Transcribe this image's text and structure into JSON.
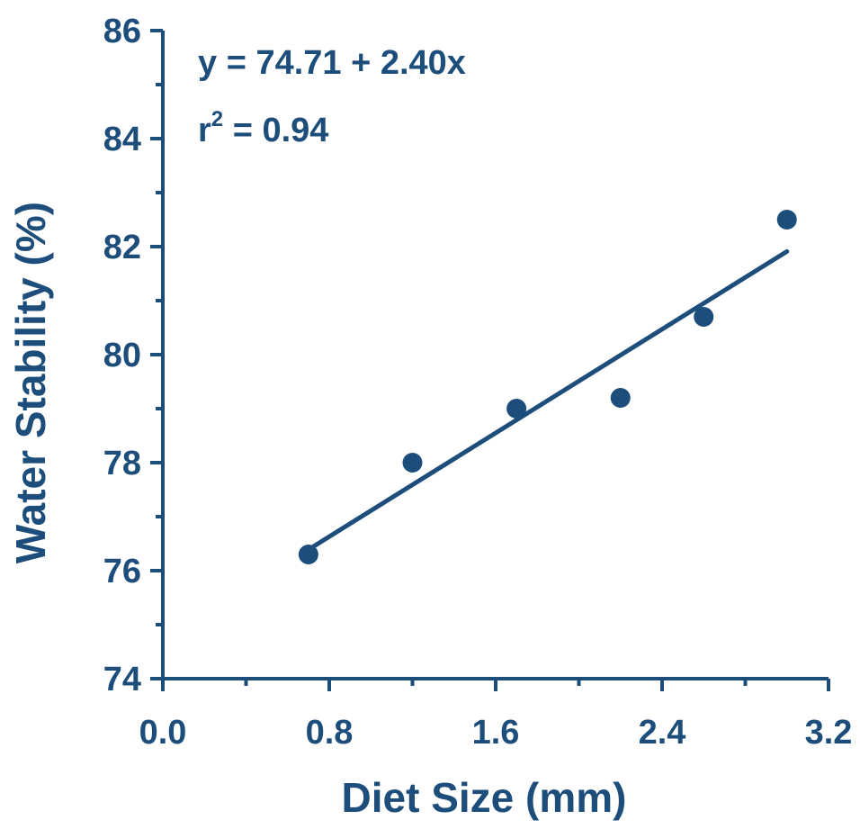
{
  "chart_data": {
    "type": "scatter",
    "title": "",
    "xlabel": "Diet Size (mm)",
    "ylabel": "Water Stability (%)",
    "xlim": [
      0.0,
      3.2
    ],
    "ylim": [
      74,
      86
    ],
    "x_ticks": [
      "0.0",
      "0.8",
      "1.6",
      "2.4",
      "3.2"
    ],
    "y_ticks": [
      "74",
      "76",
      "78",
      "80",
      "82",
      "84",
      "86"
    ],
    "series": [
      {
        "x": [
          0.7,
          1.2,
          1.7,
          2.2,
          2.6,
          3.0
        ],
        "y": [
          76.3,
          78.0,
          79.0,
          79.2,
          80.7,
          82.5
        ]
      }
    ],
    "fit_line": {
      "intercept": 74.71,
      "slope": 2.4,
      "x_range": [
        0.7,
        3.0
      ]
    },
    "annotations": {
      "equation": "y = 74.71 + 2.40x",
      "r2_prefix": "r",
      "r2_sup": "2",
      "r2_suffix": " = 0.94"
    },
    "colors": {
      "ink": "#1d4d7a"
    },
    "grid": false,
    "legend": "none"
  }
}
